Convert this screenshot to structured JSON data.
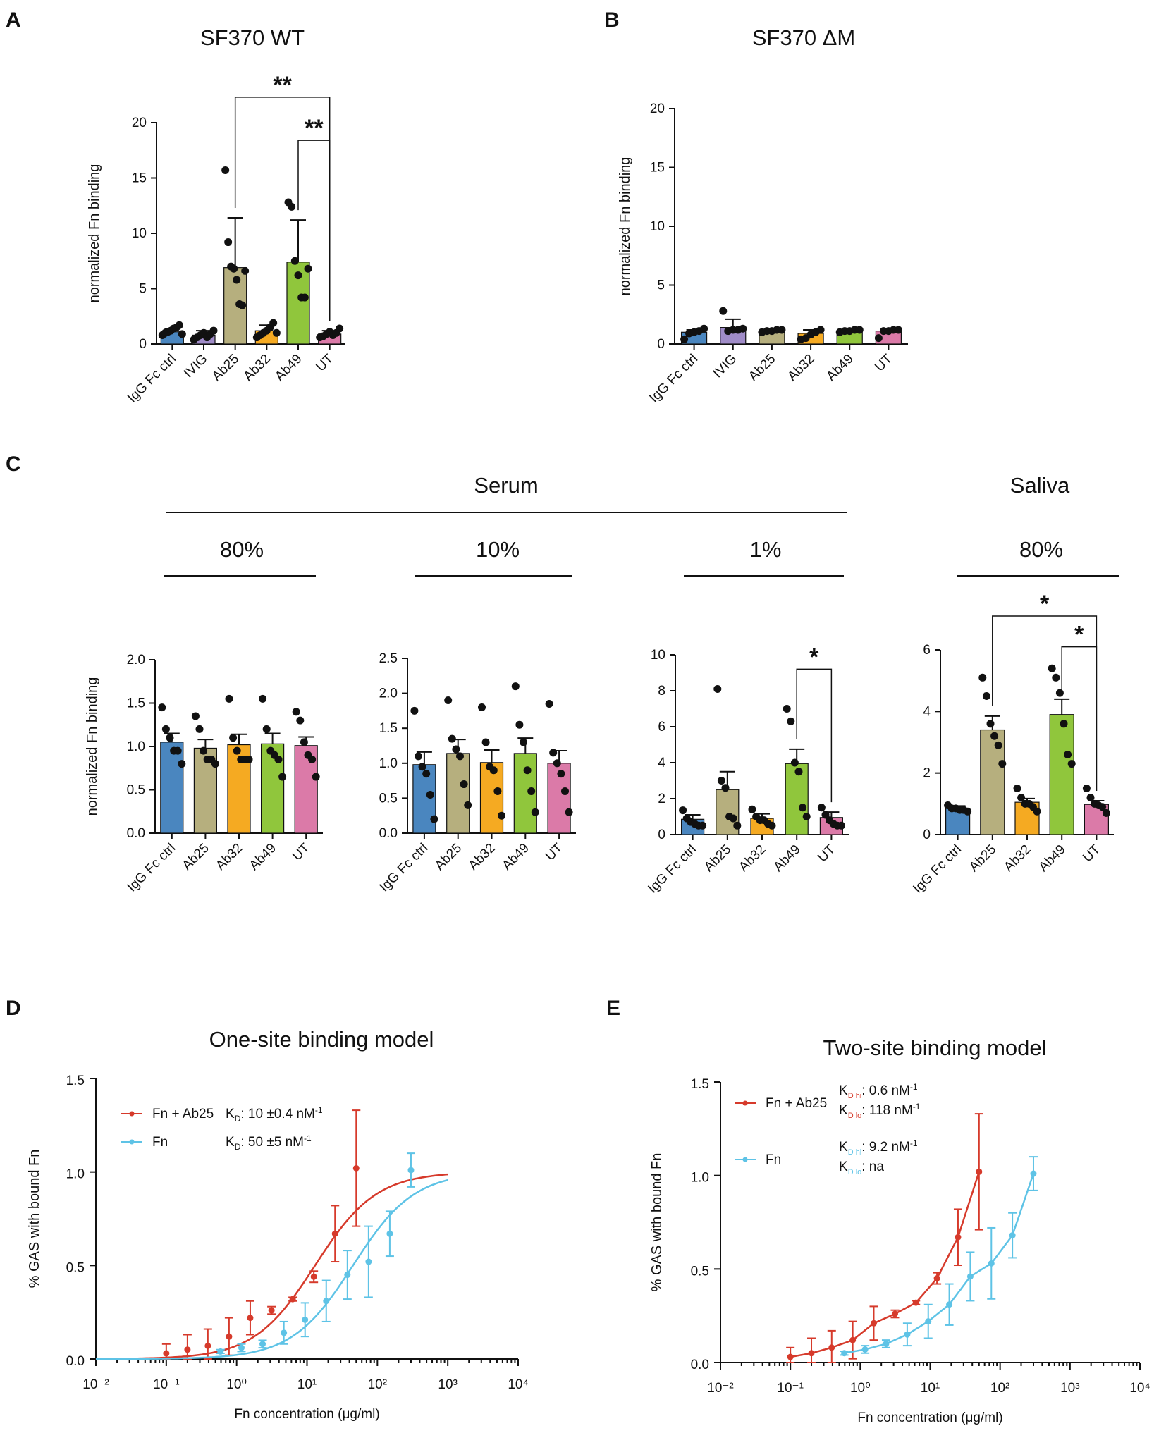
{
  "panels": {
    "A": {
      "letter": "A",
      "title": "SF370 WT"
    },
    "B": {
      "letter": "B",
      "title": "SF370 ΔM"
    },
    "C": {
      "letter": "C",
      "serum": "Serum",
      "saliva": "Saliva",
      "sub1": "80%",
      "sub2": "10%",
      "sub3": "1%",
      "sub4": "80%"
    },
    "D": {
      "letter": "D",
      "title": "One-site binding model"
    },
    "E": {
      "letter": "E",
      "title": "Two-site binding model"
    }
  },
  "colors": {
    "IgG Fc ctrl": "#4a86bf",
    "IVIG": "#a08cc8",
    "Ab25": "#b6af7e",
    "Ab32": "#f5aa22",
    "Ab49": "#90c63c",
    "UT": "#db7aa8",
    "red": "#d63a2b",
    "blue": "#5ec3e6"
  },
  "chart_data": [
    {
      "id": "A",
      "type": "bar",
      "title": "SF370 WT",
      "ylabel": "normalized Fn binding",
      "ylim": [
        0,
        20
      ],
      "yticks": [
        0,
        5,
        10,
        15,
        20
      ],
      "categories": [
        "IgG Fc ctrl",
        "IVIG",
        "Ab25",
        "Ab32",
        "Ab49",
        "UT"
      ],
      "values": [
        1.1,
        0.8,
        6.9,
        1.2,
        7.4,
        0.9
      ],
      "err": [
        0.3,
        0.4,
        4.5,
        0.5,
        3.8,
        0.3
      ],
      "points": [
        [
          0.8,
          1.0,
          1.1,
          1.2,
          1.4,
          1.5,
          1.7,
          0.9
        ],
        [
          0.4,
          0.6,
          0.8,
          1.0,
          0.6,
          0.9,
          1.2
        ],
        [
          15.7,
          9.2,
          7.0,
          6.8,
          5.8,
          3.6,
          3.5,
          6.6
        ],
        [
          0.6,
          0.8,
          1.0,
          1.2,
          1.5,
          1.9,
          1.0
        ],
        [
          12.8,
          12.4,
          7.5,
          6.2,
          4.2,
          4.2,
          6.8
        ],
        [
          0.6,
          0.7,
          0.9,
          1.1,
          0.8,
          1.0,
          1.4
        ]
      ],
      "sig": [
        {
          "from": "Ab25",
          "to": "UT",
          "label": "**",
          "y": 22.3
        },
        {
          "from": "Ab49",
          "to": "UT",
          "label": "**",
          "y": 18.4
        }
      ]
    },
    {
      "id": "B",
      "type": "bar",
      "title": "SF370 ΔM",
      "ylabel": "normalized Fn binding",
      "ylim": [
        0,
        20
      ],
      "yticks": [
        0,
        5,
        10,
        15,
        20
      ],
      "categories": [
        "IgG Fc ctrl",
        "IVIG",
        "Ab25",
        "Ab32",
        "Ab49",
        "UT"
      ],
      "values": [
        1.0,
        1.4,
        1.1,
        0.9,
        1.1,
        1.1
      ],
      "err": [
        0.2,
        0.7,
        0.1,
        0.3,
        0.1,
        0.1
      ],
      "points": [
        [
          0.4,
          0.9,
          1.0,
          1.1,
          1.3
        ],
        [
          2.8,
          1.1,
          1.2,
          1.2,
          1.3
        ],
        [
          1.0,
          1.1,
          1.1,
          1.2,
          1.2
        ],
        [
          0.4,
          0.5,
          0.8,
          1.0,
          1.2
        ],
        [
          1.0,
          1.1,
          1.1,
          1.2,
          1.2
        ],
        [
          0.5,
          1.1,
          1.1,
          1.2,
          1.2
        ]
      ],
      "sig": []
    },
    {
      "id": "C1",
      "type": "bar",
      "group": "Serum 80%",
      "ylabel": "normalized Fn binding",
      "ylim": [
        0,
        2.0
      ],
      "yticks": [
        "0.0",
        "0.5",
        "1.0",
        "1.5",
        "2.0"
      ],
      "categories": [
        "IgG Fc ctrl",
        "Ab25",
        "Ab32",
        "Ab49",
        "UT"
      ],
      "values": [
        1.05,
        0.98,
        1.02,
        1.03,
        1.01
      ],
      "err": [
        0.1,
        0.1,
        0.12,
        0.12,
        0.1
      ],
      "points": [
        [
          1.45,
          1.2,
          1.1,
          0.95,
          0.95,
          0.8
        ],
        [
          1.35,
          1.2,
          0.95,
          0.85,
          0.85,
          0.8
        ],
        [
          1.55,
          1.1,
          0.95,
          0.85,
          0.85,
          0.85
        ],
        [
          1.55,
          1.2,
          0.95,
          0.9,
          0.85,
          0.65
        ],
        [
          1.4,
          1.3,
          1.05,
          0.9,
          0.85,
          0.65
        ]
      ],
      "sig": []
    },
    {
      "id": "C2",
      "type": "bar",
      "group": "Serum 10%",
      "ylabel": "",
      "ylim": [
        0,
        2.5
      ],
      "yticks": [
        "0.0",
        "0.5",
        "1.0",
        "1.5",
        "2.0",
        "2.5"
      ],
      "categories": [
        "IgG Fc ctrl",
        "Ab25",
        "Ab32",
        "Ab49",
        "UT"
      ],
      "values": [
        0.98,
        1.14,
        1.01,
        1.14,
        1.0
      ],
      "err": [
        0.18,
        0.2,
        0.18,
        0.22,
        0.18
      ],
      "points": [
        [
          1.75,
          1.1,
          0.95,
          0.85,
          0.55,
          0.2
        ],
        [
          1.9,
          1.35,
          1.2,
          1.1,
          0.7,
          0.4
        ],
        [
          1.8,
          1.3,
          0.95,
          0.9,
          0.6,
          0.25
        ],
        [
          2.1,
          1.55,
          1.3,
          0.9,
          0.6,
          0.3
        ],
        [
          1.85,
          1.15,
          1.0,
          0.85,
          0.6,
          0.3
        ]
      ],
      "sig": []
    },
    {
      "id": "C3",
      "type": "bar",
      "group": "Serum 1%",
      "ylabel": "",
      "ylim": [
        0,
        10
      ],
      "yticks": [
        "0",
        "2",
        "4",
        "6",
        "8",
        "10"
      ],
      "categories": [
        "IgG Fc ctrl",
        "Ab25",
        "Ab32",
        "Ab49",
        "UT"
      ],
      "values": [
        0.85,
        2.5,
        0.9,
        3.95,
        0.95
      ],
      "err": [
        0.25,
        1.0,
        0.25,
        0.8,
        0.3
      ],
      "points": [
        [
          1.35,
          0.9,
          0.7,
          0.6,
          0.5,
          0.5
        ],
        [
          8.1,
          3.0,
          2.6,
          1.0,
          0.9,
          0.5
        ],
        [
          1.4,
          1.0,
          0.8,
          0.8,
          0.6,
          0.5
        ],
        [
          7.0,
          6.3,
          4.0,
          3.5,
          1.5,
          1.0
        ],
        [
          1.5,
          1.1,
          0.8,
          0.6,
          0.5,
          0.5
        ]
      ],
      "sig": [
        {
          "from": "Ab49",
          "to": "UT",
          "label": "*",
          "y": 9.2
        }
      ]
    },
    {
      "id": "C4",
      "type": "bar",
      "group": "Saliva 80%",
      "ylabel": "",
      "ylim": [
        0,
        6
      ],
      "yticks": [
        "0",
        "2",
        "4",
        "6"
      ],
      "categories": [
        "IgG Fc ctrl",
        "Ab25",
        "Ab32",
        "Ab49",
        "UT"
      ],
      "values": [
        0.85,
        3.4,
        1.05,
        3.9,
        0.98
      ],
      "err": [
        0.08,
        0.45,
        0.12,
        0.5,
        0.12
      ],
      "points": [
        [
          0.95,
          0.85,
          0.85,
          0.8,
          0.8,
          0.75
        ],
        [
          5.1,
          4.5,
          3.6,
          3.2,
          2.9,
          2.3
        ],
        [
          1.5,
          1.2,
          1.0,
          1.0,
          0.9,
          0.75
        ],
        [
          5.4,
          5.1,
          4.6,
          3.6,
          2.6,
          2.3
        ],
        [
          1.5,
          1.2,
          1.0,
          0.95,
          0.9,
          0.7
        ]
      ],
      "sig": [
        {
          "from": "Ab25",
          "to": "UT",
          "label": "*",
          "y": 7.1
        },
        {
          "from": "Ab49",
          "to": "UT",
          "label": "*",
          "y": 6.1
        }
      ]
    },
    {
      "id": "D",
      "type": "scatter",
      "title": "One-site binding model",
      "xlabel": "Fn concentration (μg/ml)",
      "ylabel": "% GAS with bound Fn",
      "xlim_log10": [
        -2,
        4
      ],
      "ylim": [
        0,
        1.5
      ],
      "yticks": [
        "0.0",
        "0.5",
        "1.0",
        "1.5"
      ],
      "series": [
        {
          "name": "Fn + Ab25",
          "color": "#d63a2b",
          "kd_label": ": 10 ±0.4 nM",
          "kd_sup": "-1",
          "x": [
            0.1,
            0.2,
            0.39,
            0.78,
            1.56,
            3.13,
            6.25,
            12.5,
            25,
            50
          ],
          "y": [
            0.03,
            0.05,
            0.07,
            0.12,
            0.22,
            0.26,
            0.32,
            0.44,
            0.67,
            1.02
          ],
          "err": [
            0.05,
            0.08,
            0.09,
            0.1,
            0.09,
            0.02,
            0.01,
            0.03,
            0.15,
            0.31
          ],
          "fit_ec50": 13,
          "fit_max": 1.0
        },
        {
          "name": "Fn",
          "color": "#5ec3e6",
          "kd_label": ": 50 ±5 nM",
          "kd_sup": "-1",
          "x": [
            0.59,
            1.17,
            2.34,
            4.69,
            9.38,
            18.75,
            37.5,
            75,
            150,
            300
          ],
          "y": [
            0.04,
            0.06,
            0.08,
            0.14,
            0.21,
            0.31,
            0.45,
            0.52,
            0.67,
            1.01
          ],
          "err": [
            0.01,
            0.02,
            0.02,
            0.06,
            0.09,
            0.11,
            0.13,
            0.19,
            0.12,
            0.09
          ],
          "fit_ec50": 45,
          "fit_max": 1.0
        }
      ]
    },
    {
      "id": "E",
      "type": "scatter",
      "title": "Two-site binding model",
      "xlabel": "Fn concentration (μg/ml)",
      "ylabel": "% GAS with bound Fn",
      "xlim_log10": [
        -2,
        4
      ],
      "ylim": [
        0,
        1.5
      ],
      "yticks": [
        "0.0",
        "0.5",
        "1.0",
        "1.5"
      ],
      "series": [
        {
          "name": "Fn + Ab25",
          "color": "#d63a2b",
          "kd_hi": ": 0.6 nM",
          "kd_lo": ": 118 nM",
          "kd_sup": "-1",
          "x": [
            0.1,
            0.2,
            0.39,
            0.78,
            1.56,
            3.13,
            6.25,
            12.5,
            25,
            50
          ],
          "y": [
            0.03,
            0.05,
            0.08,
            0.12,
            0.21,
            0.26,
            0.32,
            0.45,
            0.67,
            1.02
          ],
          "err": [
            0.05,
            0.08,
            0.09,
            0.1,
            0.09,
            0.02,
            0.01,
            0.03,
            0.15,
            0.31
          ]
        },
        {
          "name": "Fn",
          "color": "#5ec3e6",
          "kd_hi": ": 9.2 nM",
          "kd_lo": ": na",
          "kd_sup": "-1",
          "x": [
            0.59,
            1.17,
            2.34,
            4.69,
            9.38,
            18.75,
            37.5,
            75,
            150,
            300
          ],
          "y": [
            0.05,
            0.07,
            0.1,
            0.15,
            0.22,
            0.31,
            0.46,
            0.53,
            0.68,
            1.01
          ],
          "err": [
            0.01,
            0.02,
            0.02,
            0.06,
            0.09,
            0.11,
            0.13,
            0.19,
            0.12,
            0.09
          ]
        }
      ]
    }
  ]
}
